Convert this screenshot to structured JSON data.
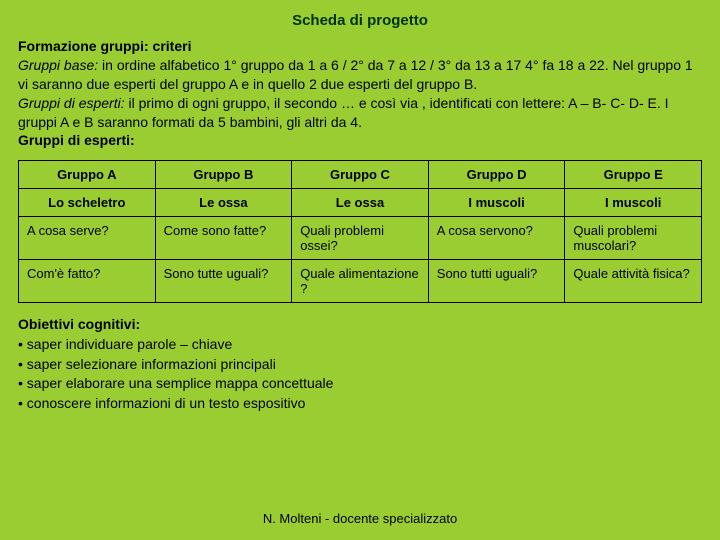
{
  "title": "Scheda di progetto",
  "intro": {
    "heading": "Formazione gruppi: criteri",
    "line1_label": "Gruppi base:",
    "line1_text": " in ordine alfabetico 1° gruppo da 1 a 6 / 2° da 7 a 12 / 3° da 13 a 17 4° fa 18 a 22. Nel gruppo 1 vi saranno due esperti del gruppo A e in quello 2 due esperti del gruppo B.",
    "line2_label": "Gruppi di esperti:",
    "line2_text": " il primo di ogni gruppo, il secondo … e così via , identificati con lettere: A – B- C- D- E. I gruppi A e B  saranno formati da 5 bambini, gli altri da 4.",
    "line3": "Gruppi di esperti:"
  },
  "table": {
    "headers": [
      "Gruppo A",
      "Gruppo B",
      "Gruppo C",
      "Gruppo D",
      "Gruppo E"
    ],
    "subheaders": [
      "Lo scheletro",
      "Le ossa",
      "Le ossa",
      "I muscoli",
      "I muscoli"
    ],
    "row1": [
      "A cosa serve?",
      "Come sono fatte?",
      "Quali problemi ossei?",
      "A cosa servono?",
      "Quali problemi muscolari?"
    ],
    "row2": [
      "Com'è fatto?",
      "Sono tutte uguali?",
      "Quale alimentazione ?",
      "Sono tutti uguali?",
      "Quale attività fisica?"
    ]
  },
  "objectives": {
    "heading": "Obiettivi cognitivi:",
    "items": [
      "saper individuare parole – chiave",
      "saper selezionare informazioni principali",
      "saper elaborare una semplice mappa concettuale",
      "conoscere informazioni di  un testo espositivo"
    ]
  },
  "footer": "N. Molteni - docente specializzato"
}
